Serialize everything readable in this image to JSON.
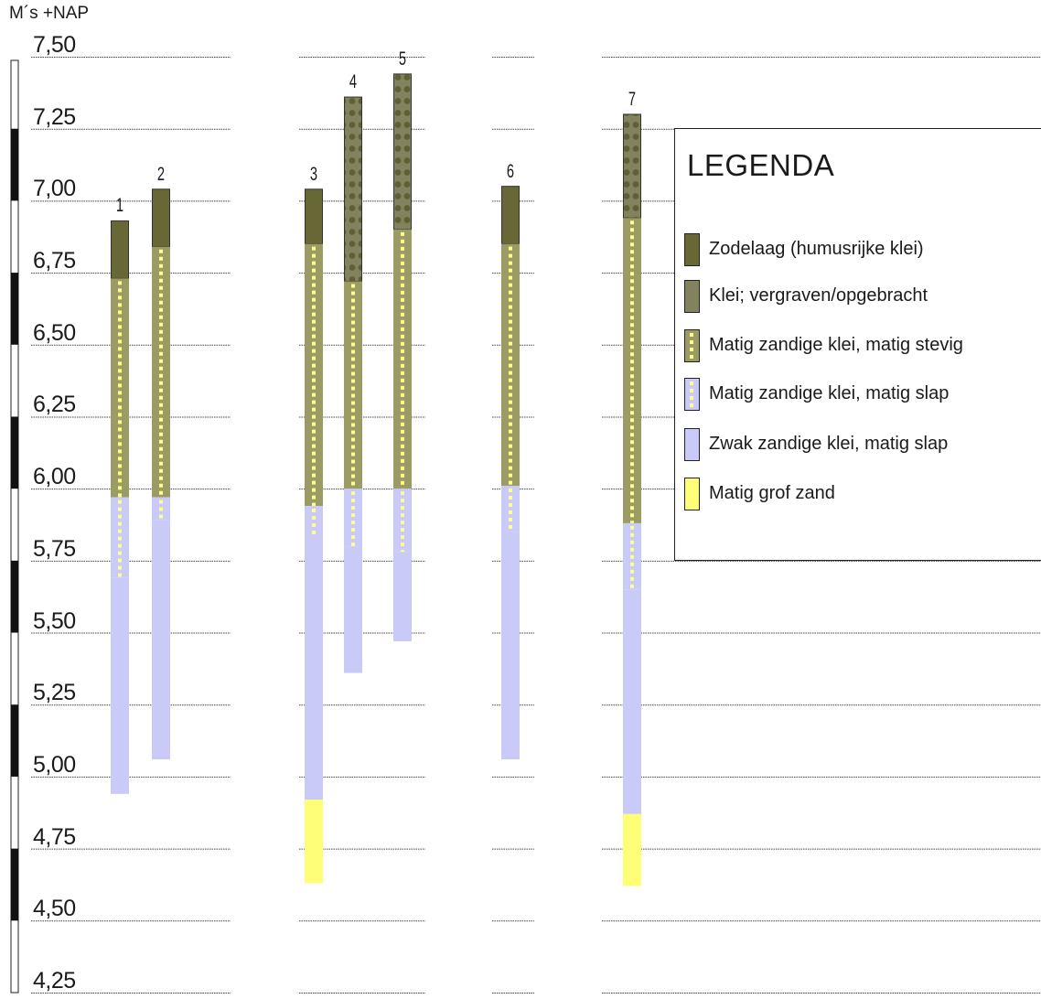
{
  "axis": {
    "unit_label": "M´s +NAP",
    "ticks": [
      "7,50",
      "7,25",
      "7,00",
      "6,75",
      "6,50",
      "6,25",
      "6,00",
      "5,75",
      "5,50",
      "5,25",
      "5,00",
      "4,75",
      "4,50",
      "4,25"
    ],
    "min": 4.25,
    "max": 7.5
  },
  "colors": {
    "zodelaag": "#686836",
    "klei_vergraven": "#82825e",
    "matig_stevig": "#9b9b64",
    "matig_slap": "#cacaf8",
    "zwak_slap": "#cacaf8",
    "grof_zand": "#ffff77",
    "dash": "#fdfd90",
    "dots": "#5f5f33"
  },
  "boreholes": [
    {
      "label": "1",
      "layers": [
        {
          "type": "zodelaag",
          "top": 6.93,
          "bottom": 6.73
        },
        {
          "type": "matig_stevig",
          "top": 6.73,
          "bottom": 5.97
        },
        {
          "type": "matig_slap",
          "top": 5.97,
          "bottom": 5.69
        },
        {
          "type": "zwak_slap",
          "top": 5.69,
          "bottom": 4.94
        }
      ]
    },
    {
      "label": "2",
      "layers": [
        {
          "type": "zodelaag",
          "top": 7.04,
          "bottom": 6.84
        },
        {
          "type": "matig_stevig",
          "top": 6.84,
          "bottom": 5.97
        },
        {
          "type": "matig_slap",
          "top": 5.97,
          "bottom": 5.89
        },
        {
          "type": "zwak_slap",
          "top": 5.89,
          "bottom": 5.06
        }
      ]
    },
    {
      "label": "3",
      "layers": [
        {
          "type": "zodelaag",
          "top": 7.04,
          "bottom": 6.85
        },
        {
          "type": "matig_stevig",
          "top": 6.85,
          "bottom": 5.94
        },
        {
          "type": "matig_slap",
          "top": 5.94,
          "bottom": 5.84
        },
        {
          "type": "zwak_slap",
          "top": 5.84,
          "bottom": 4.92
        },
        {
          "type": "grof_zand",
          "top": 4.92,
          "bottom": 4.63
        }
      ]
    },
    {
      "label": "4",
      "layers": [
        {
          "type": "klei_vergraven",
          "top": 7.36,
          "bottom": 6.72
        },
        {
          "type": "matig_stevig",
          "top": 6.72,
          "bottom": 6.0
        },
        {
          "type": "matig_slap",
          "top": 6.0,
          "bottom": 5.8
        },
        {
          "type": "zwak_slap",
          "top": 5.8,
          "bottom": 5.36
        }
      ]
    },
    {
      "label": "5",
      "layers": [
        {
          "type": "klei_vergraven",
          "top": 7.44,
          "bottom": 6.9
        },
        {
          "type": "matig_stevig",
          "top": 6.9,
          "bottom": 6.0
        },
        {
          "type": "matig_slap",
          "top": 6.0,
          "bottom": 5.78
        },
        {
          "type": "zwak_slap",
          "top": 5.78,
          "bottom": 5.47
        }
      ]
    },
    {
      "label": "6",
      "layers": [
        {
          "type": "zodelaag",
          "top": 7.05,
          "bottom": 6.85
        },
        {
          "type": "matig_stevig",
          "top": 6.85,
          "bottom": 6.01
        },
        {
          "type": "matig_slap",
          "top": 6.01,
          "bottom": 5.85
        },
        {
          "type": "zwak_slap",
          "top": 5.85,
          "bottom": 5.06
        }
      ]
    },
    {
      "label": "7",
      "layers": [
        {
          "type": "klei_vergraven",
          "top": 7.3,
          "bottom": 6.94
        },
        {
          "type": "matig_stevig",
          "top": 6.94,
          "bottom": 5.88
        },
        {
          "type": "matig_slap",
          "top": 5.88,
          "bottom": 5.65
        },
        {
          "type": "zwak_slap",
          "top": 5.65,
          "bottom": 4.87
        },
        {
          "type": "grof_zand",
          "top": 4.87,
          "bottom": 4.62
        }
      ]
    }
  ],
  "legend": {
    "title": "LEGENDA",
    "items": [
      {
        "type": "zodelaag",
        "label": "Zodelaag (humusrijke klei)"
      },
      {
        "type": "klei_vergraven",
        "label": "Klei; vergraven/opgebracht"
      },
      {
        "type": "matig_stevig",
        "label": "Matig zandige klei, matig stevig"
      },
      {
        "type": "matig_slap",
        "label": "Matig zandige klei, matig slap"
      },
      {
        "type": "zwak_slap",
        "label": "Zwak zandige klei, matig slap"
      },
      {
        "type": "grof_zand",
        "label": "Matig grof zand"
      }
    ]
  }
}
